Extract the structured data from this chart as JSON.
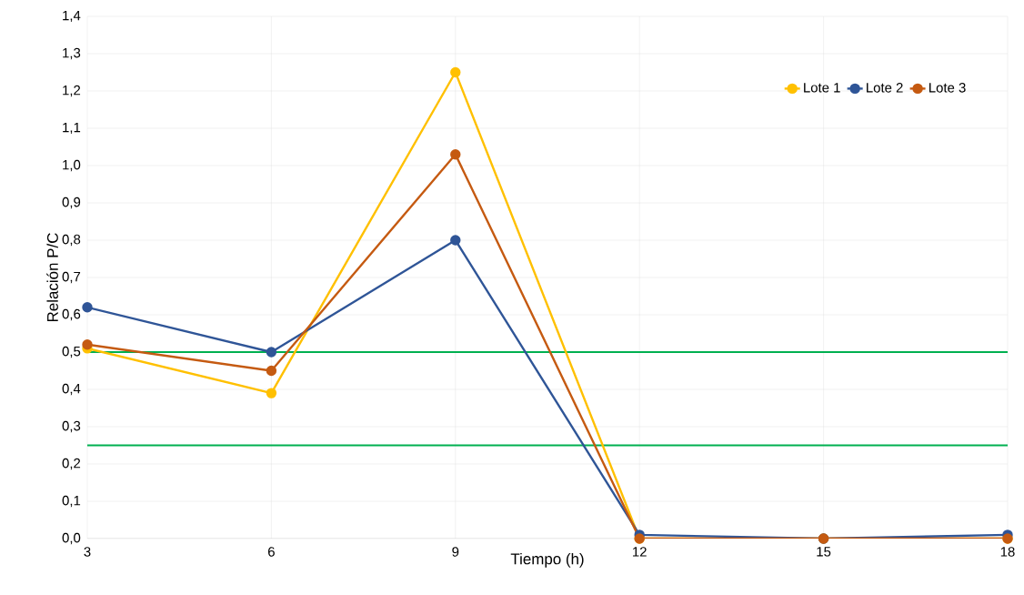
{
  "chart_data": {
    "type": "line",
    "xlabel": "Tiempo (h)",
    "ylabel": "Relación P/C",
    "x": [
      3,
      6,
      9,
      12,
      15,
      18
    ],
    "series": [
      {
        "name": "Lote 1",
        "color": "#ffc000",
        "values": [
          0.51,
          0.39,
          1.25,
          0,
          0,
          0
        ]
      },
      {
        "name": "Lote 2",
        "color": "#2f5597",
        "values": [
          0.62,
          0.5,
          0.8,
          0.01,
          0,
          0.01
        ]
      },
      {
        "name": "Lote 3",
        "color": "#c55a11",
        "values": [
          0.52,
          0.45,
          1.03,
          0,
          0,
          0
        ]
      }
    ],
    "xlim": [
      3,
      18
    ],
    "xticks": [
      3,
      6,
      9,
      12,
      15,
      18
    ],
    "ylim": [
      0,
      1.4
    ],
    "yticks": [
      {
        "value": 0,
        "label": "0,0"
      },
      {
        "value": 0.1,
        "label": "0,1"
      },
      {
        "value": 0.2,
        "label": "0,2"
      },
      {
        "value": 0.3,
        "label": "0,3"
      },
      {
        "value": 0.4,
        "label": "0,4"
      },
      {
        "value": 0.5,
        "label": "0,5"
      },
      {
        "value": 0.6,
        "label": "0,6"
      },
      {
        "value": 0.7,
        "label": "0,7"
      },
      {
        "value": 0.8,
        "label": "0,8"
      },
      {
        "value": 0.9,
        "label": "0,9"
      },
      {
        "value": 1.0,
        "label": "1,0"
      },
      {
        "value": 1.1,
        "label": "1,1"
      },
      {
        "value": 1.2,
        "label": "1,2"
      },
      {
        "value": 1.3,
        "label": "1,3"
      },
      {
        "value": 1.4,
        "label": "1,4"
      }
    ],
    "ref_lines": [
      {
        "axis": "y",
        "value": 0.5,
        "color": "#00b050"
      },
      {
        "axis": "y",
        "value": 0.25,
        "color": "#00b050"
      }
    ],
    "grid": true,
    "legend": "top right",
    "marker": "circle",
    "line_style": "solid"
  }
}
